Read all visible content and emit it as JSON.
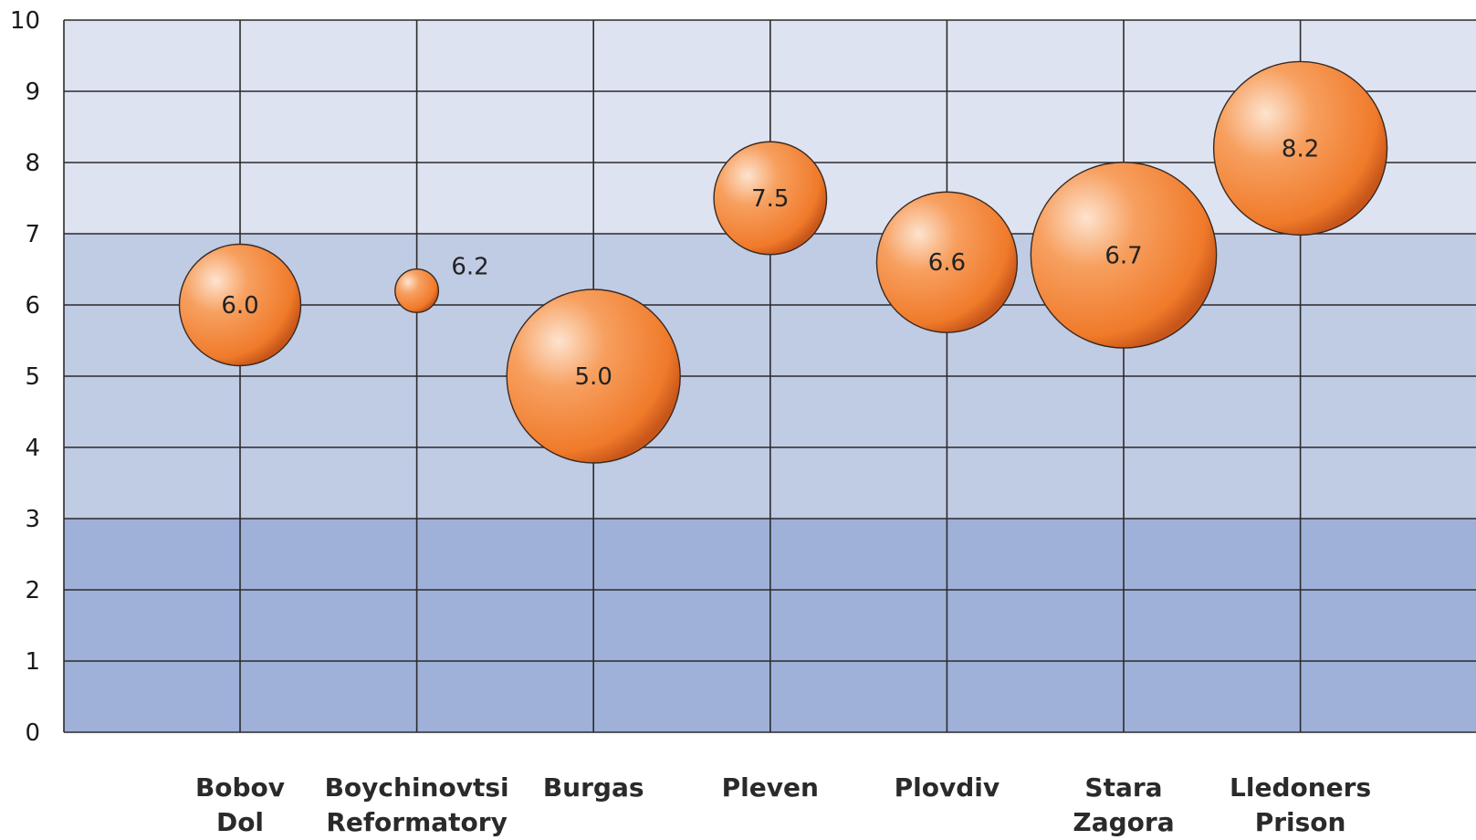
{
  "chart_data": {
    "type": "bubble",
    "title": "",
    "xlabel": "",
    "ylabel": "",
    "ylim": [
      0,
      10
    ],
    "yticks": [
      "0",
      "1",
      "2",
      "3",
      "4",
      "5",
      "6",
      "7",
      "8",
      "9",
      "10"
    ],
    "grid": true,
    "legend": "none",
    "categories": [
      [
        "Bobov",
        "Dol"
      ],
      [
        "Boychinovtsi",
        "Reformatory"
      ],
      [
        "Burgas"
      ],
      [
        "Pleven"
      ],
      [
        "Plovdiv"
      ],
      [
        "Stara",
        "Zagora"
      ],
      [
        "Lledoners",
        "Prison"
      ]
    ],
    "points": [
      {
        "label": "6.0",
        "y": 6.0,
        "relative_size": 0.7,
        "label_position": "inside"
      },
      {
        "label": "6.2",
        "y": 6.2,
        "relative_size": 0.25,
        "label_position": "outside-right"
      },
      {
        "label": "5.0",
        "y": 5.0,
        "relative_size": 1.0,
        "label_position": "inside"
      },
      {
        "label": "7.5",
        "y": 7.5,
        "relative_size": 0.65,
        "label_position": "inside"
      },
      {
        "label": "6.6",
        "y": 6.6,
        "relative_size": 0.81,
        "label_position": "inside"
      },
      {
        "label": "6.7",
        "y": 6.7,
        "relative_size": 1.07,
        "label_position": "inside"
      },
      {
        "label": "8.2",
        "y": 8.2,
        "relative_size": 1.0,
        "label_position": "inside"
      }
    ],
    "bands": [
      {
        "from": 0,
        "to": 3,
        "color": "#9fb1d8"
      },
      {
        "from": 3,
        "to": 7,
        "color": "#c0cbe4"
      },
      {
        "from": 7,
        "to": 10,
        "color": "#dee3f1"
      }
    ],
    "colors": {
      "bubble_highlight": "#fde3cf",
      "bubble_mid": "#f7a060",
      "bubble_base": "#f07a2a",
      "bubble_edge": "#c8561a",
      "grid_line": "#2b2b2b"
    }
  }
}
